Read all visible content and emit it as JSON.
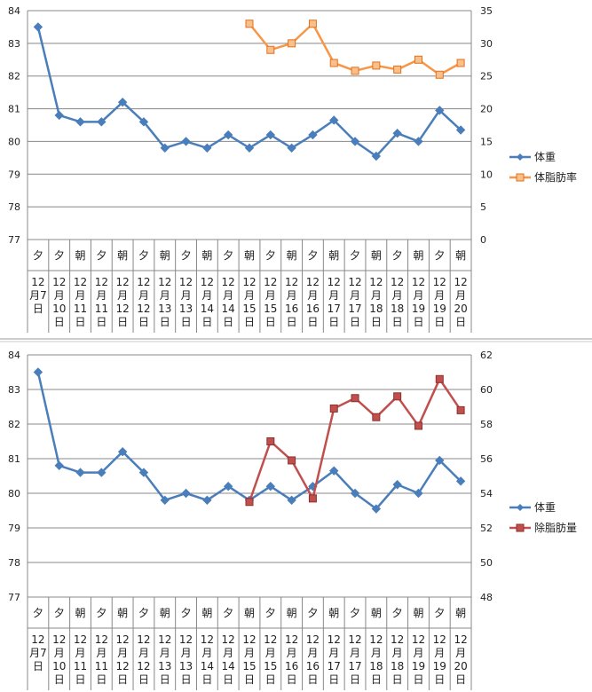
{
  "chart_data": [
    {
      "type": "line",
      "categories": [
        {
          "time": "夕",
          "date": [
            "12",
            "月",
            "7",
            "日"
          ]
        },
        {
          "time": "夕",
          "date": [
            "12",
            "月",
            "10",
            "日"
          ]
        },
        {
          "time": "朝",
          "date": [
            "12",
            "月",
            "11",
            "日"
          ]
        },
        {
          "time": "夕",
          "date": [
            "12",
            "月",
            "11",
            "日"
          ]
        },
        {
          "time": "朝",
          "date": [
            "12",
            "月",
            "12",
            "日"
          ]
        },
        {
          "time": "夕",
          "date": [
            "12",
            "月",
            "12",
            "日"
          ]
        },
        {
          "time": "朝",
          "date": [
            "12",
            "月",
            "13",
            "日"
          ]
        },
        {
          "time": "夕",
          "date": [
            "12",
            "月",
            "13",
            "日"
          ]
        },
        {
          "time": "朝",
          "date": [
            "12",
            "月",
            "14",
            "日"
          ]
        },
        {
          "time": "夕",
          "date": [
            "12",
            "月",
            "14",
            "日"
          ]
        },
        {
          "time": "朝",
          "date": [
            "12",
            "月",
            "15",
            "日"
          ]
        },
        {
          "time": "夕",
          "date": [
            "12",
            "月",
            "15",
            "日"
          ]
        },
        {
          "time": "朝",
          "date": [
            "12",
            "月",
            "16",
            "日"
          ]
        },
        {
          "time": "夕",
          "date": [
            "12",
            "月",
            "16",
            "日"
          ]
        },
        {
          "time": "朝",
          "date": [
            "12",
            "月",
            "17",
            "日"
          ]
        },
        {
          "time": "夕",
          "date": [
            "12",
            "月",
            "17",
            "日"
          ]
        },
        {
          "time": "朝",
          "date": [
            "12",
            "月",
            "18",
            "日"
          ]
        },
        {
          "time": "夕",
          "date": [
            "12",
            "月",
            "18",
            "日"
          ]
        },
        {
          "time": "朝",
          "date": [
            "12",
            "月",
            "19",
            "日"
          ]
        },
        {
          "time": "夕",
          "date": [
            "12",
            "月",
            "19",
            "日"
          ]
        },
        {
          "time": "朝",
          "date": [
            "12",
            "月",
            "20",
            "日"
          ]
        }
      ],
      "ylim_left": [
        77,
        84
      ],
      "yticks_left": [
        77,
        78,
        79,
        80,
        81,
        82,
        83,
        84
      ],
      "ylim_right": [
        0,
        35
      ],
      "yticks_right": [
        0,
        5,
        10,
        15,
        20,
        25,
        30,
        35
      ],
      "grid": "horizontal",
      "legend_position": "right",
      "series": [
        {
          "name": "体重",
          "axis": "left",
          "color": "#4a7ebb",
          "marker": "diamond",
          "values": [
            83.5,
            80.8,
            80.6,
            80.6,
            81.2,
            80.6,
            79.8,
            80.0,
            79.8,
            80.2,
            79.8,
            80.2,
            79.8,
            80.2,
            80.65,
            80.0,
            79.55,
            80.25,
            80.0,
            80.95,
            80.35
          ]
        },
        {
          "name": "体脂肪率",
          "axis": "right",
          "color": "#f79646",
          "marker": "square",
          "values": [
            null,
            null,
            null,
            null,
            null,
            null,
            null,
            null,
            null,
            null,
            33.0,
            29.0,
            30.0,
            33.0,
            27.0,
            25.8,
            26.6,
            26.0,
            27.5,
            25.2,
            27.0
          ]
        }
      ]
    },
    {
      "type": "line",
      "categories_ref": "same as chart 1",
      "ylim_left": [
        77,
        84
      ],
      "yticks_left": [
        77,
        78,
        79,
        80,
        81,
        82,
        83,
        84
      ],
      "ylim_right": [
        48,
        62
      ],
      "yticks_right": [
        48,
        50,
        52,
        54,
        56,
        58,
        60,
        62
      ],
      "grid": "horizontal",
      "legend_position": "right",
      "series": [
        {
          "name": "体重",
          "axis": "left",
          "color": "#4a7ebb",
          "marker": "diamond",
          "values": [
            83.5,
            80.8,
            80.6,
            80.6,
            81.2,
            80.6,
            79.8,
            80.0,
            79.8,
            80.2,
            79.8,
            80.2,
            79.8,
            80.2,
            80.65,
            80.0,
            79.55,
            80.25,
            80.0,
            80.95,
            80.35
          ]
        },
        {
          "name": "除脂肪量",
          "axis": "right",
          "color": "#c0504d",
          "marker": "square",
          "values": [
            null,
            null,
            null,
            null,
            null,
            null,
            null,
            null,
            null,
            null,
            53.5,
            57.0,
            55.9,
            53.7,
            58.9,
            59.5,
            58.4,
            59.6,
            57.9,
            60.6,
            58.8
          ]
        }
      ]
    }
  ]
}
